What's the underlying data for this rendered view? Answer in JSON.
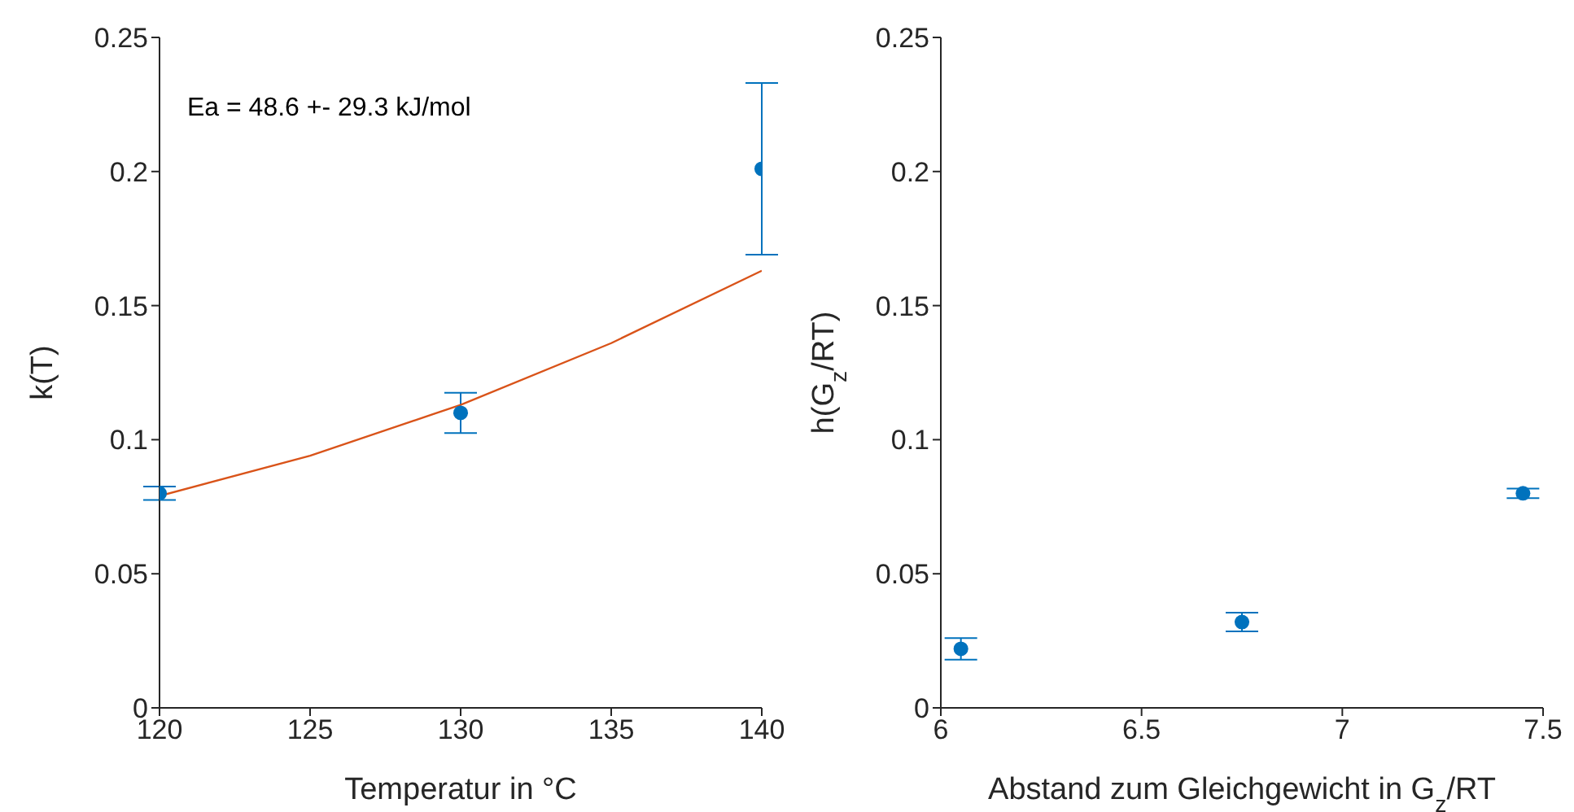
{
  "chart_data": [
    {
      "type": "scatter",
      "xlabel": "Temperatur in °C",
      "ylabel": "k(T)",
      "annotations": [
        "Ea = 48.6 +- 29.3 kJ/mol"
      ],
      "xlim": [
        120,
        140
      ],
      "xticks": [
        120,
        125,
        130,
        135,
        140
      ],
      "ylim": [
        0,
        0.25
      ],
      "yticks": [
        0,
        0.05,
        0.1,
        0.15,
        0.2,
        0.25
      ],
      "grid": false,
      "series": [
        {
          "marker": "circle",
          "color": "#0072bd",
          "x": [
            120,
            130,
            140
          ],
          "values": [
            0.08,
            0.11,
            0.201
          ],
          "errors": [
            0.0025,
            0.0075,
            0.032
          ]
        },
        {
          "type": "line",
          "color": "#d95319",
          "x": [
            120,
            125,
            130,
            135,
            140
          ],
          "values": [
            0.079,
            0.094,
            0.113,
            0.136,
            0.163
          ]
        }
      ]
    },
    {
      "type": "scatter",
      "xlabel": "Abstand zum Gleichgewicht in G$_{z}$/RT",
      "ylabel": "h(G$_{z}$/RT)",
      "xlim": [
        6,
        7.5
      ],
      "xticks": [
        6,
        6.5,
        7,
        7.5
      ],
      "ylim": [
        0,
        0.25
      ],
      "yticks": [
        0,
        0.05,
        0.1,
        0.15,
        0.2,
        0.25
      ],
      "grid": false,
      "marker": "circle",
      "series": [
        {
          "color": "#0072bd",
          "x": [
            6.05,
            6.75,
            7.45
          ],
          "values": [
            0.022,
            0.032,
            0.08
          ],
          "errors": [
            0.004,
            0.0035,
            0.0018
          ]
        }
      ]
    }
  ]
}
